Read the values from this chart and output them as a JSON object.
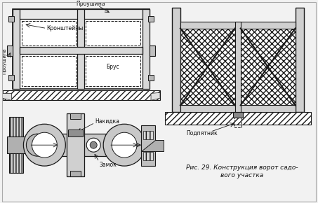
{
  "bg_color": "#f2f2f2",
  "line_color": "#1a1a1a",
  "text_color": "#111111",
  "caption": "Рис. 29. Конструкция ворот садо-\nвого участка",
  "label_proshina_top": "Проушина",
  "label_kronshteyni": "Кронштейны",
  "label_brus": "Брус",
  "label_proshina_left": "Проушина",
  "label_nakidka": "Накидка",
  "label_zamok": "Замок",
  "label_podpyatnik": "Подпятник"
}
